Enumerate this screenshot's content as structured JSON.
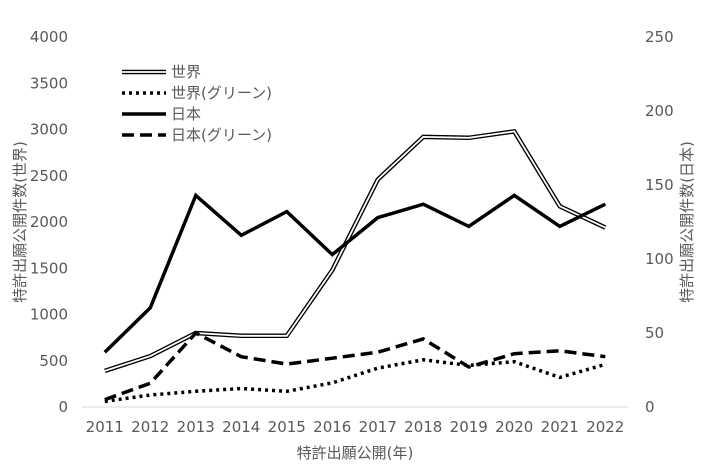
{
  "chart_data": {
    "type": "line",
    "title": "",
    "xlabel": "特許出願公開(年)",
    "ylabel_left": "特許出願公開件数(世界)",
    "ylabel_right": "特許出願公開件数(日本)",
    "categories": [
      "2011",
      "2012",
      "2013",
      "2014",
      "2015",
      "2016",
      "2017",
      "2018",
      "2019",
      "2020",
      "2021",
      "2022"
    ],
    "y_left": {
      "min": 0,
      "max": 4000,
      "ticks": [
        "0",
        "500",
        "1000",
        "1500",
        "2000",
        "2500",
        "3000",
        "3500",
        "4000"
      ]
    },
    "y_right": {
      "min": 0,
      "max": 250,
      "ticks": [
        "0",
        "50",
        "100",
        "150",
        "200",
        "250"
      ]
    },
    "grid": false,
    "legend_position": "top-left",
    "series": [
      {
        "name": "世界",
        "axis": "left",
        "style": "double",
        "values": [
          390,
          550,
          800,
          770,
          770,
          1480,
          2460,
          2920,
          2910,
          2980,
          2170,
          1940
        ]
      },
      {
        "name": "世界(グリーン)",
        "axis": "left",
        "style": "dotted",
        "values": [
          60,
          130,
          170,
          200,
          170,
          260,
          420,
          510,
          450,
          490,
          320,
          460
        ]
      },
      {
        "name": "日本",
        "axis": "right",
        "style": "solid",
        "values": [
          37,
          67,
          143,
          116,
          132,
          103,
          128,
          137,
          122,
          143,
          122,
          137
        ]
      },
      {
        "name": "日本(グリーン)",
        "axis": "right",
        "style": "dashed",
        "values": [
          5,
          16,
          50,
          34,
          29,
          33,
          37,
          46,
          27,
          36,
          38,
          34
        ]
      }
    ]
  }
}
